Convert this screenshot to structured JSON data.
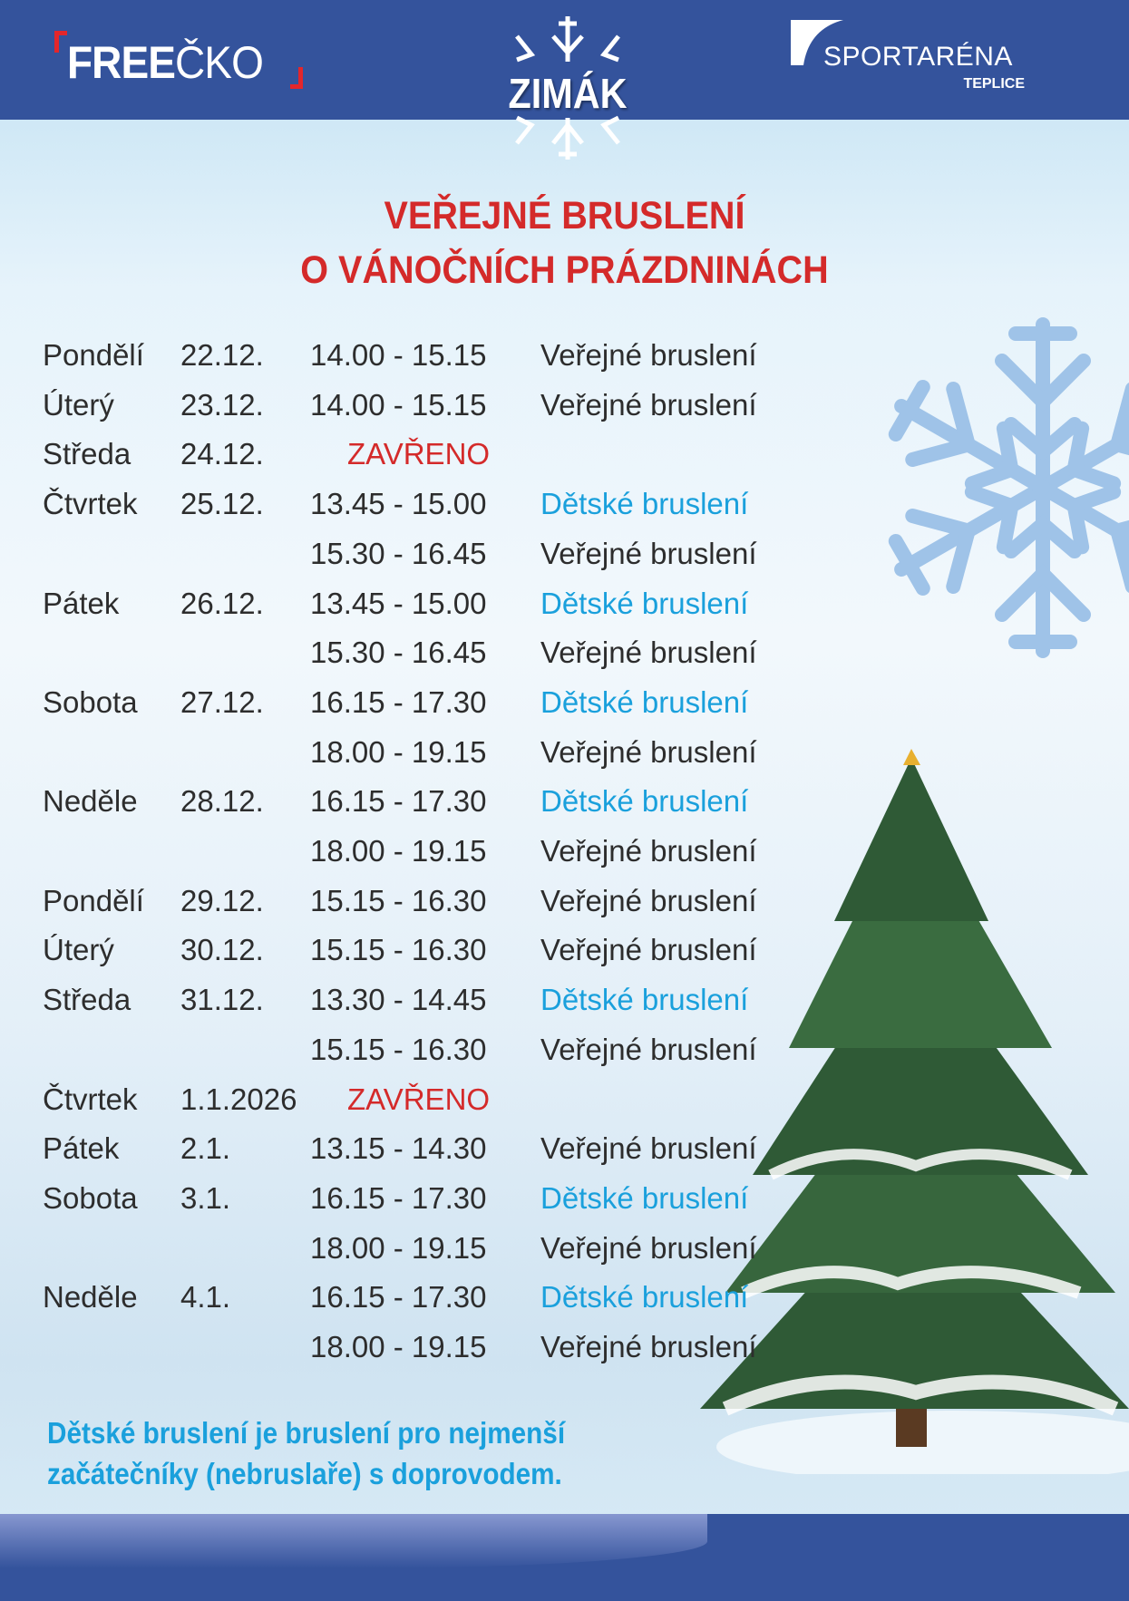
{
  "header": {
    "logo_left": {
      "bold": "FREE",
      "rest": "ČKO"
    },
    "logo_center": "ZIMÁK",
    "logo_right": {
      "name": "SPORTARÉNA",
      "city": "TEPLICE"
    }
  },
  "title": {
    "line1": "VEŘEJNÉ BRUSLENÍ",
    "line2": "O VÁNOČNÍCH PRÁZDNINÁCH"
  },
  "colors": {
    "header_bg": "#34539c",
    "title": "#d42a2a",
    "kids": "#1aa0dc",
    "text": "#2d2d2d"
  },
  "schedule": [
    {
      "day": "Pondělí",
      "date": "22.12.",
      "time": "14.00 - 15.15",
      "activity": "Veřejné bruslení",
      "type": "public"
    },
    {
      "day": "Úterý",
      "date": "23.12.",
      "time": "14.00 - 15.15",
      "activity": "Veřejné bruslení",
      "type": "public"
    },
    {
      "day": "Středa",
      "date": "24.12.",
      "closed": "ZAVŘENO"
    },
    {
      "day": "Čtvrtek",
      "date": "25.12.",
      "time": "13.45 - 15.00",
      "activity": "Dětské bruslení",
      "type": "kids"
    },
    {
      "day": "",
      "date": "",
      "time": "15.30 - 16.45",
      "activity": "Veřejné bruslení",
      "type": "public"
    },
    {
      "day": "Pátek",
      "date": "26.12.",
      "time": "13.45 - 15.00",
      "activity": "Dětské bruslení",
      "type": "kids"
    },
    {
      "day": "",
      "date": "",
      "time": "15.30 - 16.45",
      "activity": "Veřejné bruslení",
      "type": "public"
    },
    {
      "day": "Sobota",
      "date": "27.12.",
      "time": "16.15 - 17.30",
      "activity": "Dětské bruslení",
      "type": "kids"
    },
    {
      "day": "",
      "date": "",
      "time": "18.00 - 19.15",
      "activity": "Veřejné bruslení",
      "type": "public"
    },
    {
      "day": "Neděle",
      "date": "28.12.",
      "time": "16.15 - 17.30",
      "activity": "Dětské bruslení",
      "type": "kids"
    },
    {
      "day": "",
      "date": "",
      "time": "18.00 - 19.15",
      "activity": "Veřejné bruslení",
      "type": "public"
    },
    {
      "day": "Pondělí",
      "date": "29.12.",
      "time": "15.15 - 16.30",
      "activity": "Veřejné bruslení",
      "type": "public"
    },
    {
      "day": "Úterý",
      "date": "30.12.",
      "time": "15.15 - 16.30",
      "activity": "Veřejné bruslení",
      "type": "public"
    },
    {
      "day": "Středa",
      "date": "31.12.",
      "time": "13.30 - 14.45",
      "activity": "Dětské bruslení",
      "type": "kids"
    },
    {
      "day": "",
      "date": "",
      "time": "15.15 - 16.30",
      "activity": "Veřejné bruslení",
      "type": "public"
    },
    {
      "day": "Čtvrtek",
      "date": "1.1.2026",
      "closed": "ZAVŘENO"
    },
    {
      "day": "Pátek",
      "date": "2.1.",
      "time": "13.15 - 14.30",
      "activity": "Veřejné bruslení",
      "type": "public"
    },
    {
      "day": "Sobota",
      "date": "3.1.",
      "time": "16.15 - 17.30",
      "activity": "Dětské bruslení",
      "type": "kids"
    },
    {
      "day": "",
      "date": "",
      "time": "18.00 - 19.15",
      "activity": "Veřejné bruslení",
      "type": "public"
    },
    {
      "day": "Neděle",
      "date": "4.1.",
      "time": "16.15 - 17.30",
      "activity": "Dětské bruslení",
      "type": "kids"
    },
    {
      "day": "",
      "date": "",
      "time": "18.00 - 19.15",
      "activity": "Veřejné bruslení",
      "type": "public"
    }
  ],
  "note": {
    "line1": "Dětské bruslení je bruslení pro nejmenší",
    "line2": "začátečníky (nebruslaře) s doprovodem."
  },
  "icons": [
    "snowflake-icon",
    "christmas-tree-icon"
  ]
}
